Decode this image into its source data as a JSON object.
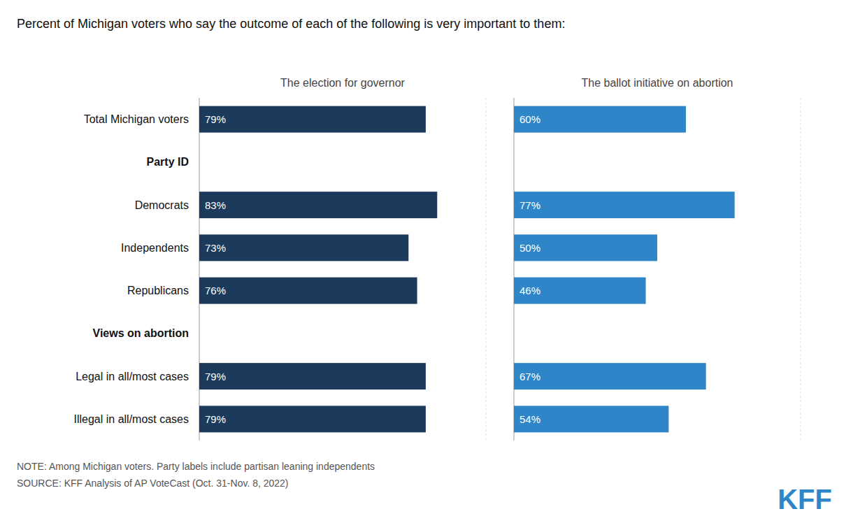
{
  "chart_data": {
    "type": "bar",
    "orientation": "horizontal",
    "title": "Percent of Michigan voters who say the outcome of each of the following is very important to them:",
    "categories": [
      "Total Michigan voters",
      "Party ID",
      "Democrats",
      "Independents",
      "Republicans",
      "Views on abortion",
      "Legal in all/most cases",
      "Illegal in all/most cases"
    ],
    "series": [
      {
        "name": "The election for governor",
        "color": "#1b3a5c",
        "values": [
          79,
          null,
          83,
          73,
          76,
          null,
          79,
          79
        ],
        "value_labels": [
          "79%",
          null,
          "83%",
          "73%",
          "76%",
          null,
          "79%",
          "79%"
        ]
      },
      {
        "name": "The ballot initiative on abortion",
        "color": "#2e86c8",
        "values": [
          60,
          null,
          77,
          50,
          46,
          null,
          67,
          54
        ],
        "value_labels": [
          "60%",
          null,
          "77%",
          "50%",
          "46%",
          null,
          "67%",
          "54%"
        ]
      }
    ],
    "xlim": [
      0,
      100
    ],
    "data_labels": true,
    "tick_labels": false,
    "grid": false,
    "annotations": [
      "NOTE: Among Michigan voters. Party labels include partisan leaning independents",
      "SOURCE: KFF Analysis of AP VoteCast (Oct. 31-Nov. 8, 2022)",
      "KFF"
    ]
  }
}
